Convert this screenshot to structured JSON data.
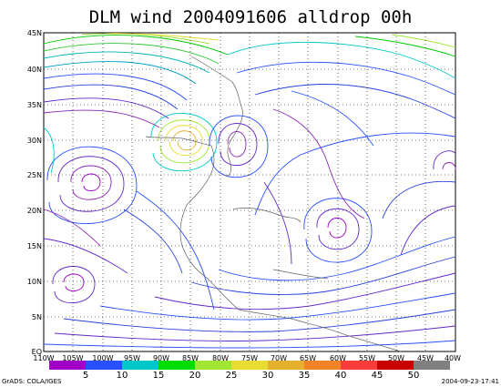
{
  "title": "DLM wind 2004091606 alldrop 00h",
  "lat_labels": [
    "45N",
    "40N",
    "35N",
    "30N",
    "25N",
    "20N",
    "15N",
    "10N",
    "5N",
    "EQ"
  ],
  "lon_labels": [
    "110W",
    "105W",
    "100W",
    "95W",
    "90W",
    "85W",
    "80W",
    "75W",
    "70W",
    "65W",
    "60W",
    "55W",
    "50W",
    "45W",
    "40W"
  ],
  "colorbar": {
    "labels": [
      "5",
      "10",
      "15",
      "20",
      "25",
      "30",
      "35",
      "40",
      "45",
      "50"
    ],
    "colors": [
      "#a000c8",
      "#2850ff",
      "#00c8c8",
      "#00dc00",
      "#a0e632",
      "#e6dc32",
      "#e6af2d",
      "#f08228",
      "#fa3c3c",
      "#c80000",
      "#808080"
    ]
  },
  "footer": {
    "left": "GrADS: COLA/IGES",
    "right": "2004-09-23-17:41"
  }
}
